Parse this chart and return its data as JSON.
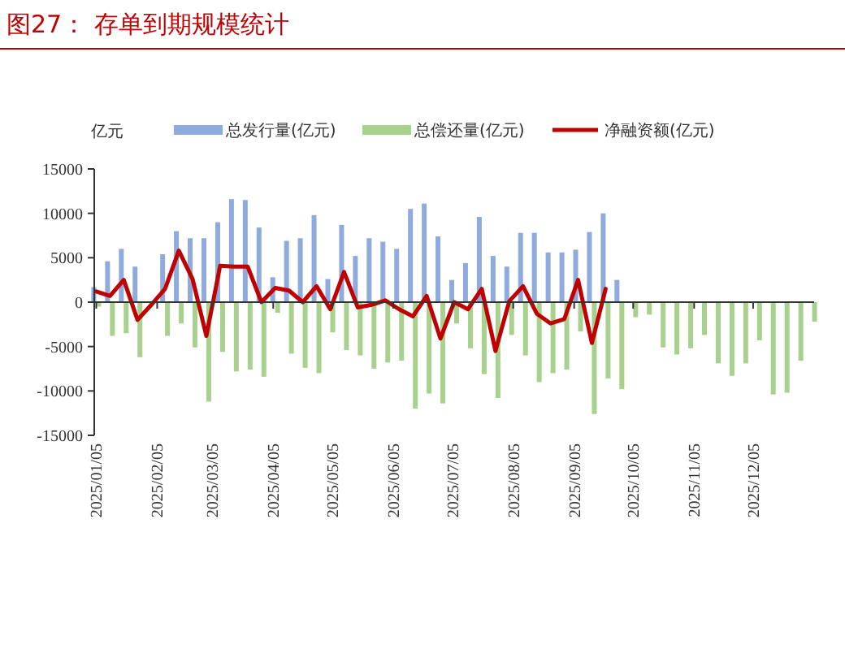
{
  "chart_data": {
    "type": "bar",
    "title": "图27：  存单到期规模统计",
    "ylabel": "亿元",
    "legend": "top",
    "x": [
      "2025-01-05",
      "2025-01-12",
      "2025-01-19",
      "2025-01-26",
      "2025-02-02",
      "2025-02-09",
      "2025-02-16",
      "2025-02-23",
      "2025-03-02",
      "2025-03-09",
      "2025-03-16",
      "2025-03-23",
      "2025-03-30",
      "2025-04-06",
      "2025-04-13",
      "2025-04-20",
      "2025-04-27",
      "2025-05-04",
      "2025-05-11",
      "2025-05-18",
      "2025-05-25",
      "2025-06-01",
      "2025-06-08",
      "2025-06-15",
      "2025-06-22",
      "2025-06-29",
      "2025-07-06",
      "2025-07-13",
      "2025-07-20",
      "2025-07-27",
      "2025-08-03",
      "2025-08-10",
      "2025-08-17",
      "2025-08-24",
      "2025-08-31",
      "2025-09-07",
      "2025-09-14",
      "2025-09-21",
      "2025-09-28",
      "2025-10-05",
      "2025-10-12",
      "2025-10-19",
      "2025-10-26",
      "2025-11-02",
      "2025-11-09",
      "2025-11-16",
      "2025-11-23",
      "2025-11-30",
      "2025-12-07",
      "2025-12-14",
      "2025-12-21",
      "2025-12-28",
      "2026-01-04"
    ],
    "xlim": [
      "2025-01-04",
      "2026-01-05"
    ],
    "xticks": [
      {
        "value": "2025-01-05",
        "label": "2025/01/05"
      },
      {
        "value": "2025-02-05",
        "label": "2025/02/05"
      },
      {
        "value": "2025-03-05",
        "label": "2025/03/05"
      },
      {
        "value": "2025-04-05",
        "label": "2025/04/05"
      },
      {
        "value": "2025-05-05",
        "label": "2025/05/05"
      },
      {
        "value": "2025-06-05",
        "label": "2025/06/05"
      },
      {
        "value": "2025-07-05",
        "label": "2025/07/05"
      },
      {
        "value": "2025-08-05",
        "label": "2025/08/05"
      },
      {
        "value": "2025-09-05",
        "label": "2025/09/05"
      },
      {
        "value": "2025-10-05",
        "label": "2025/10/05"
      },
      {
        "value": "2025-11-05",
        "label": "2025/11/05"
      },
      {
        "value": "2025-12-05",
        "label": "2025/12/05"
      }
    ],
    "ylim": [
      -15000,
      15000
    ],
    "yticks": [
      -15000,
      -10000,
      -5000,
      0,
      5000,
      10000,
      15000
    ],
    "series": [
      {
        "name": "总发行量(亿元)",
        "color": "#8faadc",
        "values": [
          1700,
          4600,
          6000,
          4000,
          0,
          5400,
          8000,
          7200,
          7200,
          9000,
          11600,
          11500,
          8400,
          2800,
          6900,
          7200,
          9800,
          2600,
          8700,
          5200,
          7200,
          6800,
          6000,
          10500,
          11100,
          7400,
          2500,
          4400,
          9600,
          5200,
          4000,
          7800,
          7800,
          5600,
          5600,
          5900,
          7900,
          10000,
          2500,
          null,
          null,
          null,
          null,
          null,
          null,
          null,
          null,
          null,
          null,
          null,
          null,
          null,
          null
        ]
      },
      {
        "name": "总偿还量(亿元)",
        "color": "#a9d18e",
        "values": [
          -500,
          -3800,
          -3500,
          -6200,
          0,
          -3800,
          -2400,
          -5100,
          -11200,
          -5600,
          -7800,
          -7600,
          -8400,
          -1200,
          -5800,
          -7400,
          -8000,
          -3400,
          -5400,
          -6000,
          -7500,
          -6800,
          -6600,
          -12000,
          -10300,
          -11400,
          -2400,
          -5200,
          -8100,
          -10800,
          -3700,
          -6000,
          -9000,
          -8000,
          -7600,
          -3300,
          -12600,
          -8600,
          -9800,
          -1700,
          -1400,
          -5100,
          -5900,
          -5200,
          -3700,
          -6900,
          -8300,
          -6900,
          -4300,
          -10400,
          -10200,
          -6600,
          -2200
        ]
      },
      {
        "name": "净融资额(亿元)",
        "type": "line",
        "color": "#c00000",
        "values": [
          1200,
          700,
          2500,
          -2000,
          -300,
          1500,
          5800,
          2600,
          -3800,
          4100,
          4000,
          4000,
          0,
          1600,
          1300,
          0,
          1800,
          -800,
          3400,
          -600,
          -300,
          200,
          -800,
          -1600,
          700,
          -4100,
          0,
          -800,
          1500,
          -5500,
          100,
          1800,
          -1300,
          -2400,
          -1900,
          2500,
          -4600,
          1500,
          null,
          null,
          null,
          null,
          null,
          null,
          null,
          null,
          null,
          null,
          null,
          null,
          null,
          null,
          null
        ]
      }
    ]
  }
}
